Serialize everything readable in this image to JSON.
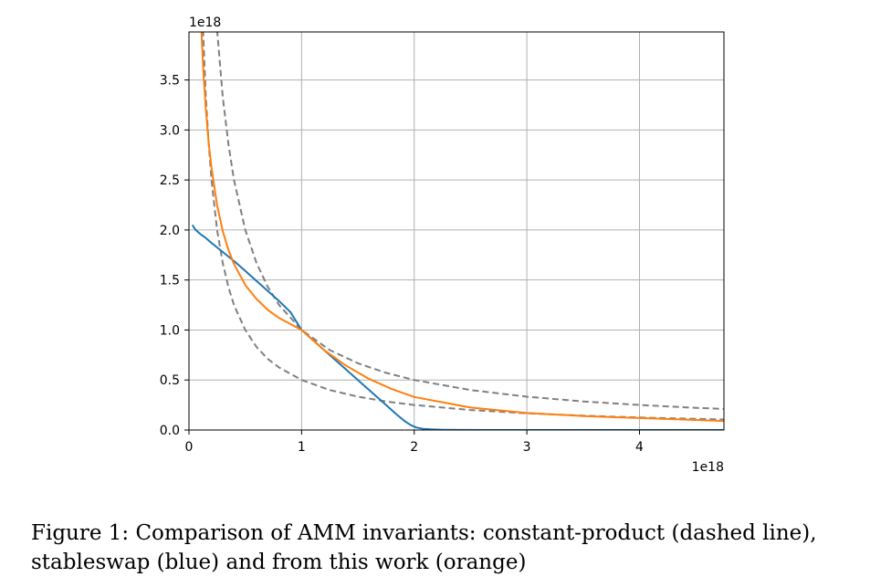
{
  "chart_data": {
    "type": "line",
    "x_exponent_label": "1e18",
    "y_exponent_label": "1e18",
    "xlim": [
      0,
      4.75
    ],
    "ylim": [
      0,
      3.98
    ],
    "x_ticks": [
      0,
      1,
      2,
      3,
      4
    ],
    "y_ticks": [
      0.0,
      0.5,
      1.0,
      1.5,
      2.0,
      2.5,
      3.0,
      3.5
    ],
    "x_tick_labels": [
      "0",
      "1",
      "2",
      "3",
      "4"
    ],
    "y_tick_labels": [
      "0.0",
      "0.5",
      "1.0",
      "1.5",
      "2.0",
      "2.5",
      "3.0",
      "3.5"
    ],
    "grid": true,
    "series": [
      {
        "style": "dashed",
        "color": "#808080",
        "x": [
          0.125,
          0.15,
          0.175,
          0.2,
          0.25,
          0.3,
          0.35,
          0.4,
          0.5,
          0.6,
          0.7,
          0.8,
          1.0,
          1.25,
          1.5,
          1.75,
          2.0,
          2.5,
          3.0,
          3.5,
          4.0,
          4.5,
          4.75
        ],
        "y": [
          4.0,
          3.33,
          2.86,
          2.5,
          2.0,
          1.67,
          1.43,
          1.25,
          1.0,
          0.83,
          0.71,
          0.625,
          0.5,
          0.4,
          0.333,
          0.286,
          0.25,
          0.2,
          0.167,
          0.143,
          0.125,
          0.111,
          0.105
        ]
      },
      {
        "style": "dashed",
        "color": "#808080",
        "x": [
          0.25,
          0.3,
          0.35,
          0.4,
          0.5,
          0.6,
          0.7,
          0.8,
          1.0,
          1.25,
          1.5,
          1.75,
          2.0,
          2.5,
          3.0,
          3.5,
          4.0,
          4.5,
          4.75
        ],
        "y": [
          4.0,
          3.33,
          2.86,
          2.5,
          2.0,
          1.67,
          1.43,
          1.25,
          1.0,
          0.8,
          0.667,
          0.571,
          0.5,
          0.4,
          0.333,
          0.286,
          0.25,
          0.222,
          0.211
        ]
      },
      {
        "style": "solid",
        "color": "#1f77b4",
        "x": [
          0.03,
          0.06,
          0.1,
          0.15,
          0.2,
          0.3,
          0.4,
          0.5,
          0.6,
          0.7,
          0.8,
          0.9,
          1.0,
          1.2,
          1.4,
          1.6,
          1.75,
          1.85,
          1.92,
          1.97,
          2.02,
          2.08,
          2.15,
          2.25,
          2.4,
          2.6,
          3.0,
          3.5,
          4.0,
          4.5,
          4.75
        ],
        "y": [
          2.05,
          2.0,
          1.96,
          1.92,
          1.87,
          1.78,
          1.69,
          1.59,
          1.49,
          1.39,
          1.29,
          1.18,
          1.0,
          0.8,
          0.6,
          0.4,
          0.25,
          0.15,
          0.085,
          0.048,
          0.025,
          0.012,
          0.006,
          0.003,
          0.001,
          0.0,
          0.0,
          0.0,
          0.0,
          0.0,
          0.0
        ]
      },
      {
        "style": "solid",
        "color": "#ff7f0e",
        "x": [
          0.11,
          0.13,
          0.15,
          0.175,
          0.2,
          0.25,
          0.3,
          0.35,
          0.4,
          0.5,
          0.6,
          0.7,
          0.8,
          0.9,
          1.0,
          1.2,
          1.4,
          1.6,
          1.8,
          2.0,
          2.5,
          3.0,
          3.5,
          4.0,
          4.5,
          4.75
        ],
        "y": [
          4.0,
          3.55,
          3.2,
          2.87,
          2.62,
          2.25,
          1.99,
          1.8,
          1.66,
          1.45,
          1.31,
          1.2,
          1.12,
          1.06,
          1.0,
          0.8,
          0.64,
          0.51,
          0.41,
          0.33,
          0.225,
          0.17,
          0.14,
          0.12,
          0.1,
          0.09
        ]
      }
    ]
  },
  "caption": "Figure 1: Comparison of AMM invariants: constant-product (dashed line), stableswap (blue) and from this work (orange)"
}
